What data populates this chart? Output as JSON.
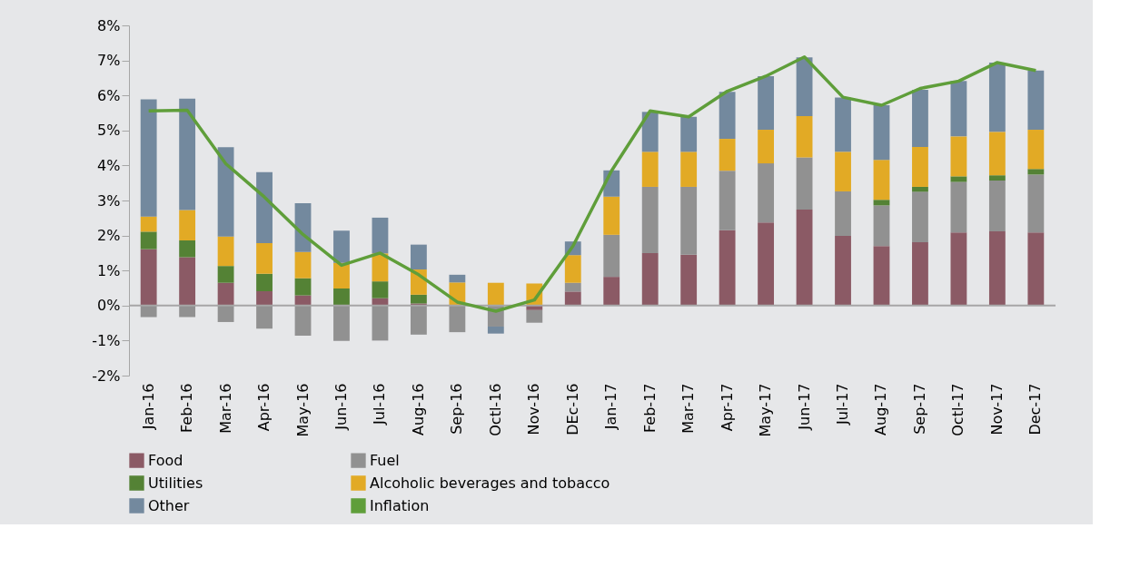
{
  "chart_data": {
    "type": "bar",
    "stacked": true,
    "categories": [
      "Jan-16",
      "Feb-16",
      "Mar-16",
      "Apr-16",
      "May-16",
      "Jun-16",
      "Jul-16",
      "Aug-16",
      "Sep-16",
      "Octl-16",
      "Nov-16",
      "DEc-16",
      "Jan-17",
      "Feb-17",
      "Mar-17",
      "Apr-17",
      "May-17",
      "Jun-17",
      "Jul-17",
      "Aug-17",
      "Sep-17",
      "Octl-17",
      "Nov-17",
      "Dec-17"
    ],
    "series": [
      {
        "name": "Food",
        "color": "#8b5a65",
        "values": [
          1.61,
          1.38,
          0.65,
          0.41,
          0.29,
          null,
          0.21,
          0.06,
          null,
          null,
          -0.13,
          0.4,
          0.82,
          1.5,
          1.45,
          2.15,
          2.37,
          2.74,
          1.99,
          1.7,
          1.81,
          2.09,
          2.12,
          2.09
        ]
      },
      {
        "name": "Fuel",
        "color": "#919191",
        "values": [
          -0.33,
          -0.33,
          -0.47,
          -0.66,
          -0.86,
          -1.01,
          -1.0,
          -0.83,
          -0.76,
          -0.6,
          -0.36,
          0.25,
          1.2,
          1.89,
          1.94,
          1.7,
          1.69,
          1.49,
          1.27,
          1.16,
          1.44,
          1.44,
          1.45,
          1.65
        ]
      },
      {
        "name": "Utilities",
        "color": "#548235",
        "values": [
          0.5,
          0.48,
          0.48,
          0.5,
          0.49,
          0.49,
          0.48,
          0.25,
          null,
          null,
          null,
          null,
          null,
          null,
          null,
          null,
          null,
          null,
          null,
          0.16,
          0.14,
          0.16,
          0.15,
          0.16
        ]
      },
      {
        "name": "Alcoholic beverages and tobacco",
        "color": "#e2aa25",
        "values": [
          0.43,
          0.87,
          0.84,
          0.87,
          0.75,
          0.73,
          0.8,
          0.72,
          0.66,
          0.65,
          0.63,
          0.79,
          1.09,
          1.0,
          1.0,
          0.91,
          0.96,
          1.18,
          1.13,
          1.14,
          1.14,
          1.14,
          1.24,
          1.12
        ]
      },
      {
        "name": "Other",
        "color": "#73899e",
        "values": [
          3.35,
          3.18,
          2.55,
          2.03,
          1.39,
          0.92,
          1.02,
          0.71,
          0.22,
          -0.2,
          null,
          0.39,
          0.75,
          1.14,
          1.0,
          1.34,
          1.53,
          1.68,
          1.55,
          1.56,
          1.63,
          1.58,
          1.98,
          1.69
        ]
      },
      {
        "name": "Inflation",
        "type": "line",
        "color": "#5f9e3a",
        "values": [
          5.56,
          5.58,
          4.05,
          3.1,
          2.03,
          1.15,
          1.5,
          0.88,
          0.1,
          -0.16,
          0.16,
          1.7,
          3.85,
          5.56,
          5.39,
          6.12,
          6.55,
          7.1,
          5.95,
          5.72,
          6.2,
          6.41,
          6.94,
          6.71
        ]
      }
    ],
    "ylim": [
      -2,
      8
    ],
    "yticks": [
      {
        "value": -2,
        "label": "-2%"
      },
      {
        "value": -1,
        "label": "-1%"
      },
      {
        "value": 0,
        "label": "0%"
      },
      {
        "value": 1,
        "label": "1%"
      },
      {
        "value": 2,
        "label": "2%"
      },
      {
        "value": 3,
        "label": "3%"
      },
      {
        "value": 4,
        "label": "4%"
      },
      {
        "value": 5,
        "label": "5%"
      },
      {
        "value": 6,
        "label": "6%"
      },
      {
        "value": 7,
        "label": "7%"
      },
      {
        "value": 8,
        "label": "8%"
      }
    ],
    "ref_lines": [
      {
        "axis": "y",
        "value": 0,
        "color": "#a6a6a6"
      }
    ],
    "legend": "bottom",
    "grid": false
  }
}
